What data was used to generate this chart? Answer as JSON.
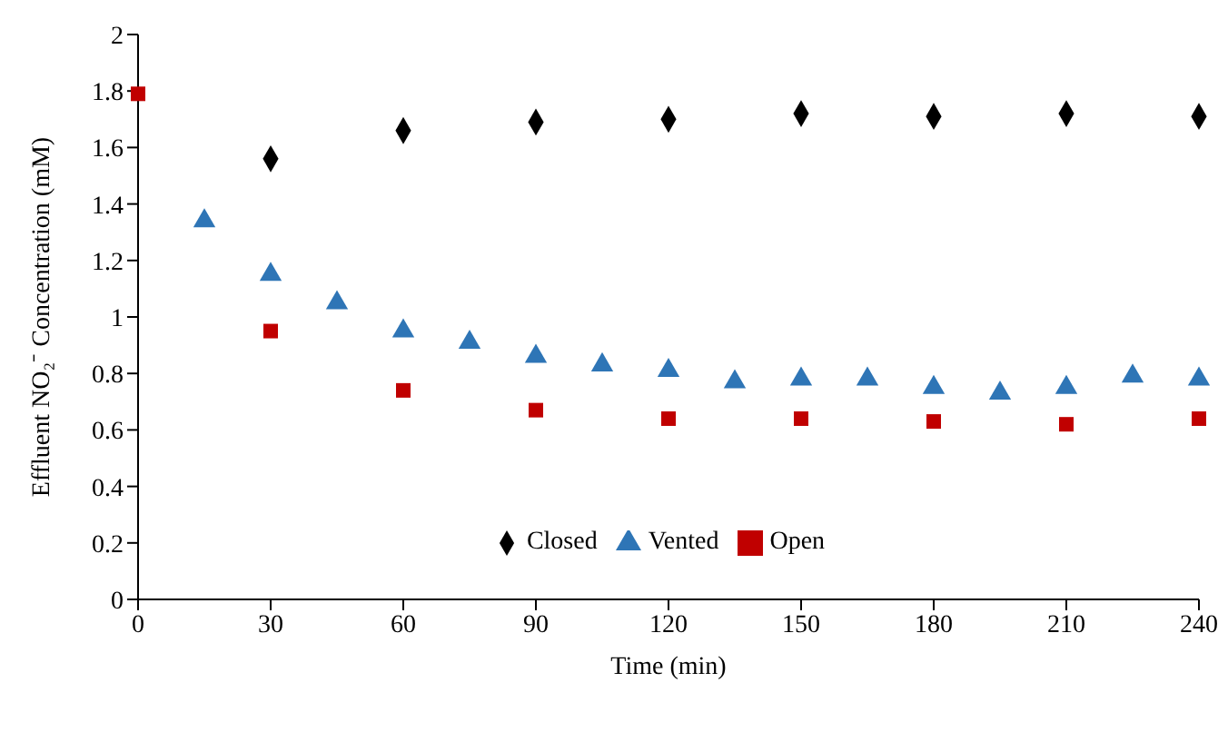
{
  "chart_data": {
    "type": "scatter",
    "xlabel": "Time (min)",
    "ylabel": "Effluent NO₂⁻ Concentration (mM)",
    "xlim": [
      0,
      240
    ],
    "xticks": [
      0,
      30,
      60,
      90,
      120,
      150,
      180,
      210,
      240
    ],
    "ylim": [
      0,
      2
    ],
    "yticks": [
      0,
      0.2,
      0.4,
      0.6,
      0.8,
      1,
      1.2,
      1.4,
      1.6,
      1.8,
      2
    ],
    "grid": false,
    "legend": "bottom",
    "series": [
      {
        "name": "Closed",
        "color": "#000000",
        "marker": "diamond",
        "x": [
          30,
          60,
          90,
          120,
          150,
          180,
          210,
          240
        ],
        "values": [
          1.56,
          1.66,
          1.69,
          1.7,
          1.72,
          1.71,
          1.72,
          1.71
        ]
      },
      {
        "name": "Vented",
        "color": "#2e75b6",
        "marker": "triangle",
        "x": [
          15,
          30,
          45,
          60,
          75,
          90,
          105,
          120,
          135,
          150,
          165,
          180,
          195,
          210,
          225,
          240
        ],
        "values": [
          1.34,
          1.15,
          1.05,
          0.95,
          0.91,
          0.86,
          0.83,
          0.81,
          0.77,
          0.78,
          0.78,
          0.75,
          0.73,
          0.75,
          0.79,
          0.78
        ]
      },
      {
        "name": "Open",
        "color": "#c00000",
        "marker": "square",
        "x": [
          0,
          30,
          60,
          90,
          120,
          150,
          180,
          210,
          240
        ],
        "values": [
          1.79,
          0.95,
          0.74,
          0.67,
          0.64,
          0.64,
          0.63,
          0.62,
          0.64
        ]
      }
    ]
  }
}
